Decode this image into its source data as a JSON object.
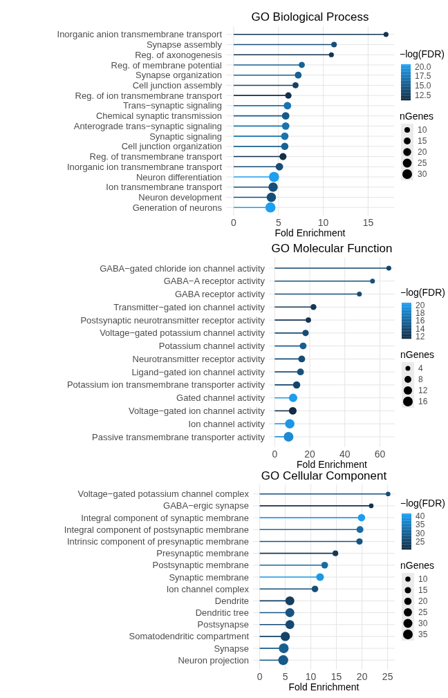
{
  "chart_data": [
    {
      "type": "lollipop",
      "orientation": "horizontal",
      "title": "GO Biological Process",
      "xlabel": "Fold Enrichment",
      "clabel": "−log(FDR)",
      "legend_title": "nGenes",
      "grid": true,
      "categories": [
        "Inorganic anion transmembrane transport",
        "Synapse assembly",
        "Reg. of axonogenesis",
        "Reg. of membrane potential",
        "Synapse organization",
        "Cell junction assembly",
        "Reg. of ion transmembrane transport",
        "Trans−synaptic signaling",
        "Chemical synaptic transmission",
        "Anterograde trans−synaptic signaling",
        "Synaptic signaling",
        "Cell junction organization",
        "Reg. of transmembrane transport",
        "Inorganic ion transmembrane transport",
        "Neuron differentiation",
        "Ion transmembrane transport",
        "Neuron development",
        "Generation of neurons"
      ],
      "values": [
        17.0,
        11.2,
        10.9,
        7.6,
        7.2,
        6.9,
        6.1,
        6.0,
        5.8,
        5.8,
        5.7,
        5.7,
        5.5,
        5.1,
        4.5,
        4.4,
        4.2,
        4.1
      ],
      "cvalues": [
        12,
        14,
        12,
        15.5,
        15.5,
        13,
        11.5,
        17,
        15,
        17,
        17,
        15.5,
        11.5,
        14,
        20.5,
        14,
        14,
        20.5
      ],
      "sizes": [
        8,
        10,
        8,
        12,
        15,
        12,
        13,
        18,
        18,
        18,
        18,
        17,
        16,
        18,
        33,
        28,
        28,
        33
      ],
      "size_legend": [
        10,
        15,
        20,
        25,
        30
      ],
      "clim": [
        11.2,
        20.6
      ],
      "cticks": [
        12.5,
        {
          "value": 15,
          "label": "15.0"
        },
        17.5,
        {
          "value": 20,
          "label": "20.0"
        }
      ],
      "xlim": [
        -0.85,
        17.9
      ],
      "xticks": [
        0,
        5,
        10,
        15
      ]
    },
    {
      "type": "lollipop",
      "orientation": "horizontal",
      "title": "GO Molecular Function",
      "xlabel": "Fold Enrichment",
      "clabel": "−log(FDR)",
      "legend_title": "nGenes",
      "grid": true,
      "categories": [
        "GABA−gated chloride ion channel activity",
        "GABA−A receptor activity",
        "GABA receptor activity",
        "Transmitter−gated ion channel activity",
        "Postsynaptic neurotransmitter receptor activity",
        "Voltage−gated potassium channel activity",
        "Potassium channel activity",
        "Neurotransmitter receptor activity",
        "Ligand−gated ion channel activity",
        "Potassium ion transmembrane transporter activity",
        "Gated channel activity",
        "Voltage−gated ion channel activity",
        "Ion channel activity",
        "Passive transmembrane transporter activity"
      ],
      "values": [
        65.1,
        55.8,
        48.3,
        22.1,
        19.2,
        17.6,
        16.2,
        15.4,
        14.7,
        12.5,
        10.5,
        10.3,
        8.6,
        7.9
      ],
      "cvalues": [
        13.5,
        14.5,
        14,
        12.5,
        12,
        14,
        15.5,
        14,
        14.5,
        13.5,
        20.5,
        11.5,
        20,
        19
      ],
      "sizes": [
        4,
        4,
        4,
        6,
        5,
        7,
        8,
        8,
        8,
        9,
        12,
        10,
        15,
        16
      ],
      "size_legend": [
        4,
        8,
        12,
        16
      ],
      "clim": [
        11.4,
        20.7
      ],
      "cticks": [
        12,
        14,
        16,
        18,
        20
      ],
      "xlim": [
        -3.3,
        68.5
      ],
      "xticks": [
        0,
        20,
        40,
        60
      ]
    },
    {
      "type": "lollipop",
      "orientation": "horizontal",
      "title": "GO Cellular Component",
      "xlabel": "Fold Enrichment",
      "clabel": "−log(FDR)",
      "legend_title": "nGenes",
      "grid": true,
      "categories": [
        "Voltage−gated potassium channel complex",
        "GABA−ergic synapse",
        "Integral component of synaptic membrane",
        "Integral component of postsynaptic membrane",
        "Intrinsic component of presynaptic membrane",
        "Presynaptic membrane",
        "Postsynaptic membrane",
        "Synaptic membrane",
        "Ion channel complex",
        "Dendrite",
        "Dendritic tree",
        "Postsynapse",
        "Somatodendritic compartment",
        "Synapse",
        "Neuron projection"
      ],
      "values": [
        25.1,
        21.8,
        19.9,
        19.6,
        19.5,
        14.8,
        12.7,
        11.8,
        10.8,
        5.9,
        5.9,
        5.9,
        5.0,
        4.7,
        4.6
      ],
      "cvalues": [
        27,
        22,
        41,
        32,
        28,
        23,
        32,
        40,
        27,
        24,
        28,
        26,
        25,
        30,
        29
      ],
      "sizes": [
        8,
        8,
        20,
        18,
        15,
        12,
        17,
        22,
        16,
        30,
        30,
        30,
        32,
        36,
        37
      ],
      "size_legend": [
        10,
        15,
        20,
        25,
        30,
        35
      ],
      "clim": [
        20.7,
        41.5
      ],
      "cticks": [
        25,
        30,
        35,
        40
      ],
      "xlim": [
        -1.3,
        26.4
      ],
      "xticks": [
        0,
        5,
        10,
        15,
        20,
        25
      ]
    }
  ]
}
